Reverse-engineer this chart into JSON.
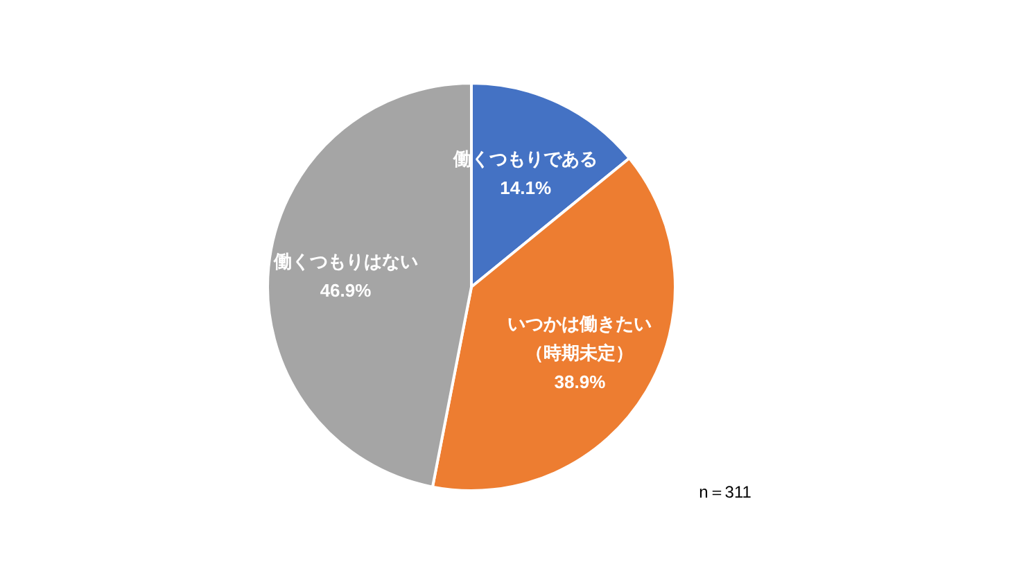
{
  "chart_data": {
    "type": "pie",
    "categories": [
      "働くつもりである",
      "いつかは働きたい（時期未定）",
      "働くつもりはない"
    ],
    "values": [
      14.1,
      38.9,
      46.9
    ],
    "value_labels": [
      "14.1%",
      "38.9%",
      "46.9%"
    ],
    "colors": [
      "#4472c4",
      "#ed7d31",
      "#a5a5a5"
    ],
    "annotations": [
      "n＝311"
    ],
    "legend": false
  }
}
